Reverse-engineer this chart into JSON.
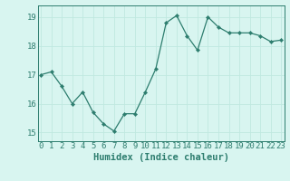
{
  "x": [
    0,
    1,
    2,
    3,
    4,
    5,
    6,
    7,
    8,
    9,
    10,
    11,
    12,
    13,
    14,
    15,
    16,
    17,
    18,
    19,
    20,
    21,
    22,
    23
  ],
  "y": [
    17.0,
    17.1,
    16.6,
    16.0,
    16.4,
    15.7,
    15.3,
    15.05,
    15.65,
    15.65,
    16.4,
    17.2,
    18.8,
    19.05,
    18.35,
    17.85,
    19.0,
    18.65,
    18.45,
    18.45,
    18.45,
    18.35,
    18.15,
    18.2
  ],
  "line_color": "#2d7d6e",
  "marker": "D",
  "marker_size": 2.2,
  "background_color": "#d8f5f0",
  "grid_color": "#c0e8e0",
  "axis_color": "#2d7d6e",
  "tick_color": "#2d7d6e",
  "xlabel": "Humidex (Indice chaleur)",
  "ylim": [
    14.7,
    19.4
  ],
  "yticks": [
    15,
    16,
    17,
    18,
    19
  ],
  "xticks": [
    0,
    1,
    2,
    3,
    4,
    5,
    6,
    7,
    8,
    9,
    10,
    11,
    12,
    13,
    14,
    15,
    16,
    17,
    18,
    19,
    20,
    21,
    22,
    23
  ],
  "xlim": [
    -0.3,
    23.3
  ],
  "font_color": "#2d7d6e",
  "xlabel_fontsize": 7.5,
  "tick_fontsize": 6.5,
  "linewidth": 0.9
}
